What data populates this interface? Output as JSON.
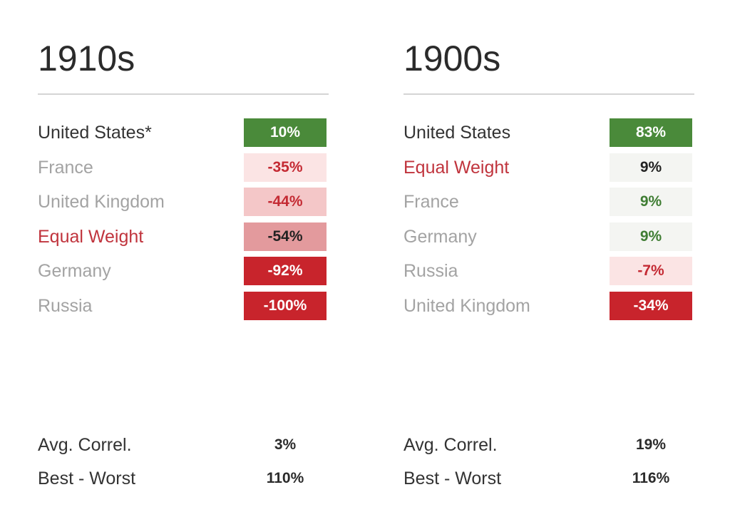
{
  "colors": {
    "title_text": "#2b2b2b",
    "label_default": "#333333",
    "label_muted": "#a3a3a3",
    "label_highlight": "#c0343d",
    "green_strong": "#4a8a3a",
    "neutral_light": "#f4f5f2",
    "red_very_light": "#fbe4e4",
    "red_light": "#f4c7c8",
    "red_medium": "#e39a9d",
    "red_strong": "#c8242c",
    "value_green_text": "#3f7d33",
    "value_red_text": "#c42a33",
    "value_dark_text": "#222222",
    "value_white_text": "#ffffff"
  },
  "chart_data": [
    {
      "type": "table",
      "title": "1910s",
      "rows": [
        {
          "label": "United States*",
          "value": 10,
          "display": "10%",
          "label_style": "default",
          "fill": "green_strong",
          "text": "value_white_text"
        },
        {
          "label": "France",
          "value": -35,
          "display": "-35%",
          "label_style": "muted",
          "fill": "red_very_light",
          "text": "value_red_text"
        },
        {
          "label": "United Kingdom",
          "value": -44,
          "display": "-44%",
          "label_style": "muted",
          "fill": "red_light",
          "text": "value_red_text"
        },
        {
          "label": "Equal Weight",
          "value": -54,
          "display": "-54%",
          "label_style": "highlight",
          "fill": "red_medium",
          "text": "value_dark_text"
        },
        {
          "label": "Germany",
          "value": -92,
          "display": "-92%",
          "label_style": "muted",
          "fill": "red_strong",
          "text": "value_white_text"
        },
        {
          "label": "Russia",
          "value": -100,
          "display": "-100%",
          "label_style": "muted",
          "fill": "red_strong",
          "text": "value_white_text"
        }
      ],
      "stats": [
        {
          "label": "Avg. Correl.",
          "value": 3,
          "display": "3%"
        },
        {
          "label": "Best - Worst",
          "value": 110,
          "display": "110%"
        }
      ]
    },
    {
      "type": "table",
      "title": "1900s",
      "rows": [
        {
          "label": "United States",
          "value": 83,
          "display": "83%",
          "label_style": "default",
          "fill": "green_strong",
          "text": "value_white_text"
        },
        {
          "label": "Equal Weight",
          "value": 9,
          "display": "9%",
          "label_style": "highlight",
          "fill": "neutral_light",
          "text": "value_dark_text"
        },
        {
          "label": "France",
          "value": 9,
          "display": "9%",
          "label_style": "muted",
          "fill": "neutral_light",
          "text": "value_green_text"
        },
        {
          "label": "Germany",
          "value": 9,
          "display": "9%",
          "label_style": "muted",
          "fill": "neutral_light",
          "text": "value_green_text"
        },
        {
          "label": "Russia",
          "value": -7,
          "display": "-7%",
          "label_style": "muted",
          "fill": "red_very_light",
          "text": "value_red_text"
        },
        {
          "label": "United Kingdom",
          "value": -34,
          "display": "-34%",
          "label_style": "muted",
          "fill": "red_strong",
          "text": "value_white_text"
        }
      ],
      "stats": [
        {
          "label": "Avg. Correl.",
          "value": 19,
          "display": "19%"
        },
        {
          "label": "Best - Worst",
          "value": 116,
          "display": "116%"
        }
      ]
    }
  ]
}
